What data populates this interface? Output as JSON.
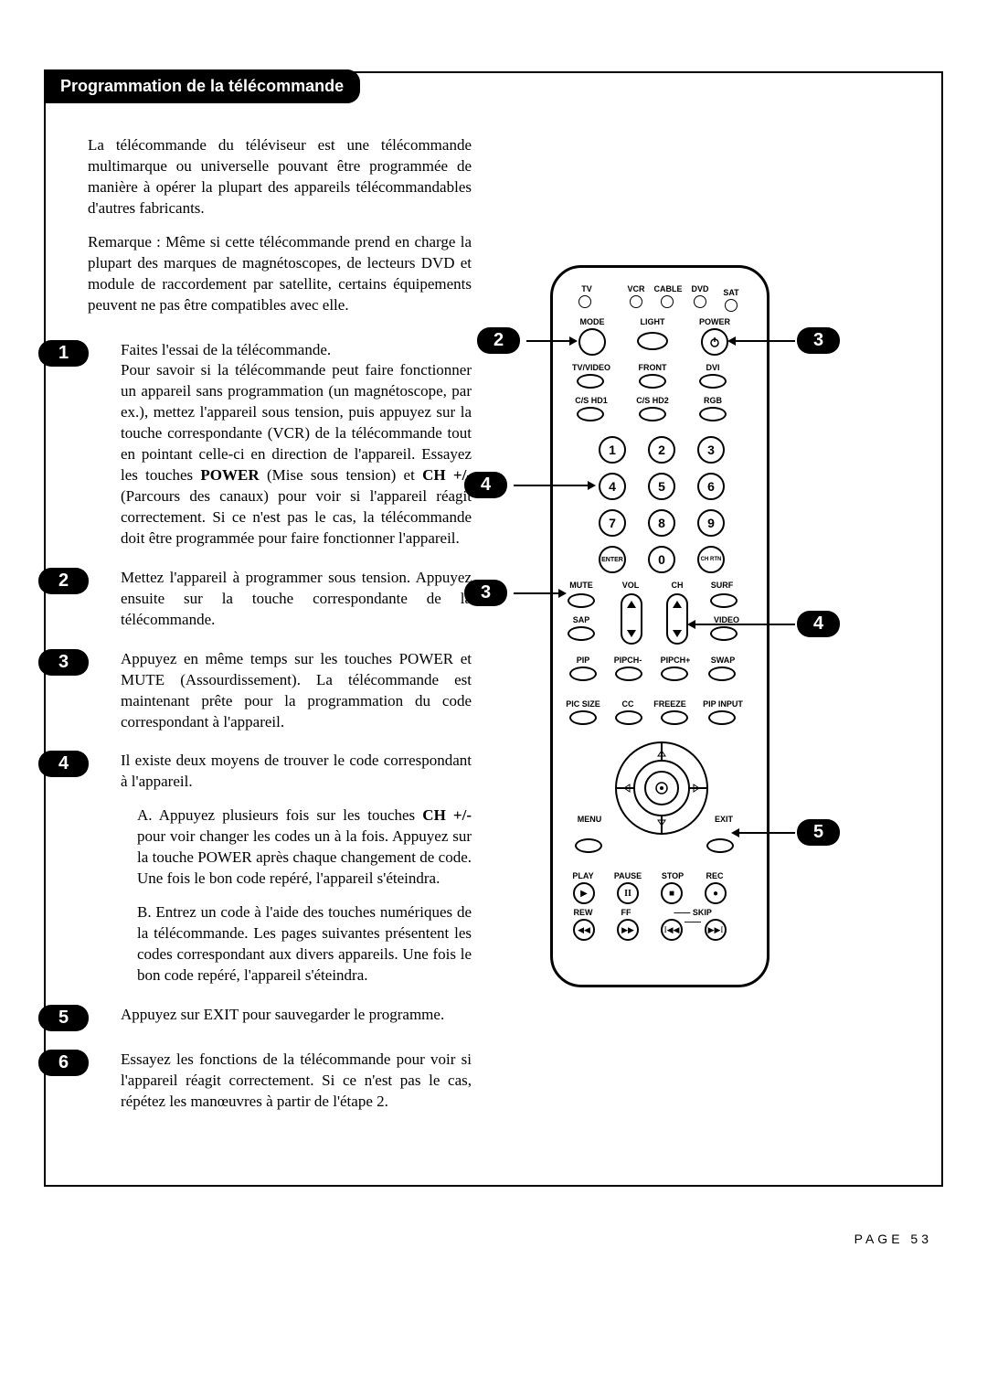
{
  "header": {
    "title": "Programmation de la télécommande"
  },
  "intro": "La télécommande du téléviseur est une télécom­mande multimarque ou universelle pouvant être programmée de manière à opérer la plupart des appareils télécommandables d'autres fabricants.",
  "note": "Remarque : Même si cette télécommande prend en charge la plupart des marques de magnétos­copes, de lecteurs DVD et module de raccorde­ment par satellite, certains équipements peu­vent ne pas être compatibles avec elle.",
  "steps": [
    {
      "n": "1",
      "body_html": "Faites l'essai de la télécommande.<br>Pour savoir si la télécommande peut faire fonc­tionner un appareil sans programmation (un magnétoscope, par ex.), mettez l'appareil sous tension, puis appuyez sur la touche correspon­dante (VCR) de la télécommande tout en pointant celle-ci en direction de l'appareil. Essayez les touches <b>POWER</b> (Mise sous tension) et <b>CH +/-</b> (Parcours des canaux) pour voir si l'ap­pareil réagit correctement. Si ce n'est pas le cas, la télécommande doit être programmée pour faire fonctionner l'appareil."
    },
    {
      "n": "2",
      "body_html": "Mettez l'appareil à programmer sous tension. Appuyez ensuite sur la touche correspondante de la télécommande."
    },
    {
      "n": "3",
      "body_html": "Appuyez en même temps sur les touches POWER et MUTE (Assourdissement). La télécommande est maintenant prête pour la programmation du code correspondant à l'appareil."
    },
    {
      "n": "4",
      "body_html": "Il existe deux moyens de trouver le code cor­respondant à l'appareil.",
      "sub": [
        "A. Appuyez plusieurs fois sur les touches <b>CH +/-</b> pour voir changer les codes un à la fois. Appuyez sur la touche POWER après chaque changement de code. Une fois le bon code repéré, l'appareil s'éteindra.",
        "B. Entrez un code à l'aide des touches numériques de la télécommande. Les pages suivantes présentent les codes correspon­dant aux divers appareils. Une fois le bon code repéré, l'appareil s'éteindra."
      ]
    },
    {
      "n": "5",
      "body_html": "Appuyez sur EXIT pour sauvegarder le pro­gramme."
    },
    {
      "n": "6",
      "body_html": "Essayez les fonctions de la télécommande pour voir si l'appareil réagit correctement. Si ce n'est pas le cas, répétez les manœuvres à par­tir de l'étape 2."
    }
  ],
  "page_number": "PAGE 53",
  "remote": {
    "top_row": [
      "TV",
      "VCR",
      "CABLE",
      "DVD",
      "SAT"
    ],
    "row2": [
      "MODE",
      "LIGHT",
      "POWER"
    ],
    "row3": [
      "TV/VIDEO",
      "FRONT",
      "DVI"
    ],
    "row4": [
      "C/S HD1",
      "C/S HD2",
      "RGB"
    ],
    "numpad": [
      "1",
      "2",
      "3",
      "4",
      "5",
      "6",
      "7",
      "8",
      "9",
      "0"
    ],
    "enter": "ENTER",
    "chrtn": "CH RTN",
    "mute": "MUTE",
    "vol": "VOL",
    "ch": "CH",
    "surf": "SURF",
    "sap": "SAP",
    "video": "VIDEO",
    "pip_row": [
      "PIP",
      "PIPCH-",
      "PIPCH+",
      "SWAP"
    ],
    "pic_row": [
      "PIC SIZE",
      "CC",
      "FREEZE",
      "PIP INPUT"
    ],
    "menu": "MENU",
    "exit": "EXIT",
    "transport1": [
      "PLAY",
      "PAUSE",
      "STOP",
      "REC"
    ],
    "transport2": [
      "REW",
      "FF",
      "SKIP"
    ]
  },
  "callouts": {
    "c2": "2",
    "c3top": "3",
    "c4left": "4",
    "c3left": "3",
    "c4right": "4",
    "c5": "5"
  },
  "colors": {
    "bg": "#ffffff",
    "ink": "#000000"
  }
}
